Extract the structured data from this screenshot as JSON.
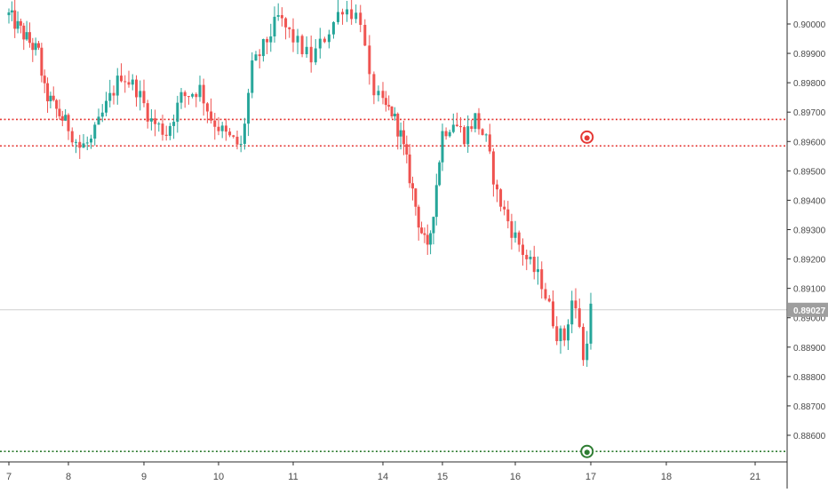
{
  "chart_data": {
    "type": "candlestick",
    "title": "",
    "xlabel": "",
    "ylabel": "",
    "ylim": [
      0.8853,
      0.9008
    ],
    "x_ticks": [
      {
        "label": "7",
        "x": 0.0
      },
      {
        "label": "8",
        "x": 1.0
      },
      {
        "label": "9",
        "x": 2.0
      },
      {
        "label": "10",
        "x": 3.0
      },
      {
        "label": "11",
        "x": 4.0
      },
      {
        "label": "14",
        "x": 5.0
      },
      {
        "label": "15",
        "x": 6.0
      },
      {
        "label": "16",
        "x": 7.0
      },
      {
        "label": "17",
        "x": 8.0
      },
      {
        "label": "18",
        "x": 9.0
      },
      {
        "label": "21",
        "x": 10.0
      }
    ],
    "y_ticks": [
      "0.90000",
      "0.89900",
      "0.89800",
      "0.89700",
      "0.89600",
      "0.89500",
      "0.89400",
      "0.89300",
      "0.89200",
      "0.89100",
      "0.89000",
      "0.88900",
      "0.88800",
      "0.88700",
      "0.88600"
    ],
    "last_price": {
      "label": "0.89027",
      "value": 0.89027
    },
    "horizontal_lines": [
      {
        "value": 0.89675,
        "color": "#e53935",
        "style": "dotted"
      },
      {
        "value": 0.89585,
        "color": "#e53935",
        "style": "dotted"
      },
      {
        "value": 0.88545,
        "color": "#2e7d32",
        "style": "dotted"
      }
    ],
    "markers": [
      {
        "x": 7.95,
        "value": 0.89615,
        "color": "#e53935",
        "icon": "target-icon"
      },
      {
        "x": 7.95,
        "value": 0.88545,
        "color": "#2e7d32",
        "icon": "target-icon"
      }
    ],
    "colors": {
      "up": "#26a69a",
      "down": "#ef5350",
      "grid_line": "#cccccc",
      "axis_text": "#4a4a4a",
      "price_badge": "#9e9e9e"
    },
    "grid": false,
    "path_keypoints": [
      [
        0.0,
        0.9003
      ],
      [
        0.3,
        0.8995
      ],
      [
        0.5,
        0.899
      ],
      [
        0.6,
        0.8977
      ],
      [
        0.75,
        0.8972
      ],
      [
        1.0,
        0.8965
      ],
      [
        1.15,
        0.8958
      ],
      [
        1.3,
        0.896
      ],
      [
        1.5,
        0.8972
      ],
      [
        1.7,
        0.8983
      ],
      [
        1.9,
        0.8978
      ],
      [
        2.1,
        0.8967
      ],
      [
        2.3,
        0.8963
      ],
      [
        2.5,
        0.8975
      ],
      [
        2.75,
        0.8978
      ],
      [
        2.9,
        0.8968
      ],
      [
        3.1,
        0.8962
      ],
      [
        3.3,
        0.8958
      ],
      [
        3.45,
        0.8985
      ],
      [
        3.6,
        0.8992
      ],
      [
        3.8,
        0.9002
      ],
      [
        4.0,
        0.8995
      ],
      [
        4.2,
        0.8988
      ],
      [
        4.4,
        0.8998
      ],
      [
        4.55,
        0.9006
      ],
      [
        4.75,
        0.9002
      ],
      [
        4.85,
        0.898
      ],
      [
        5.0,
        0.8972
      ],
      [
        5.15,
        0.897
      ],
      [
        5.3,
        0.8962
      ],
      [
        5.45,
        0.8948
      ],
      [
        5.6,
        0.8933
      ],
      [
        5.75,
        0.8922
      ],
      [
        5.85,
        0.8937
      ],
      [
        6.0,
        0.8963
      ],
      [
        6.15,
        0.8967
      ],
      [
        6.3,
        0.8962
      ],
      [
        6.45,
        0.8968
      ],
      [
        6.6,
        0.896
      ],
      [
        6.75,
        0.8942
      ],
      [
        6.95,
        0.893
      ],
      [
        7.15,
        0.892
      ],
      [
        7.35,
        0.8912
      ],
      [
        7.55,
        0.8895
      ],
      [
        7.65,
        0.8893
      ],
      [
        7.75,
        0.8906
      ],
      [
        7.85,
        0.8898
      ],
      [
        7.9,
        0.8885
      ],
      [
        8.0,
        0.8903
      ]
    ]
  }
}
